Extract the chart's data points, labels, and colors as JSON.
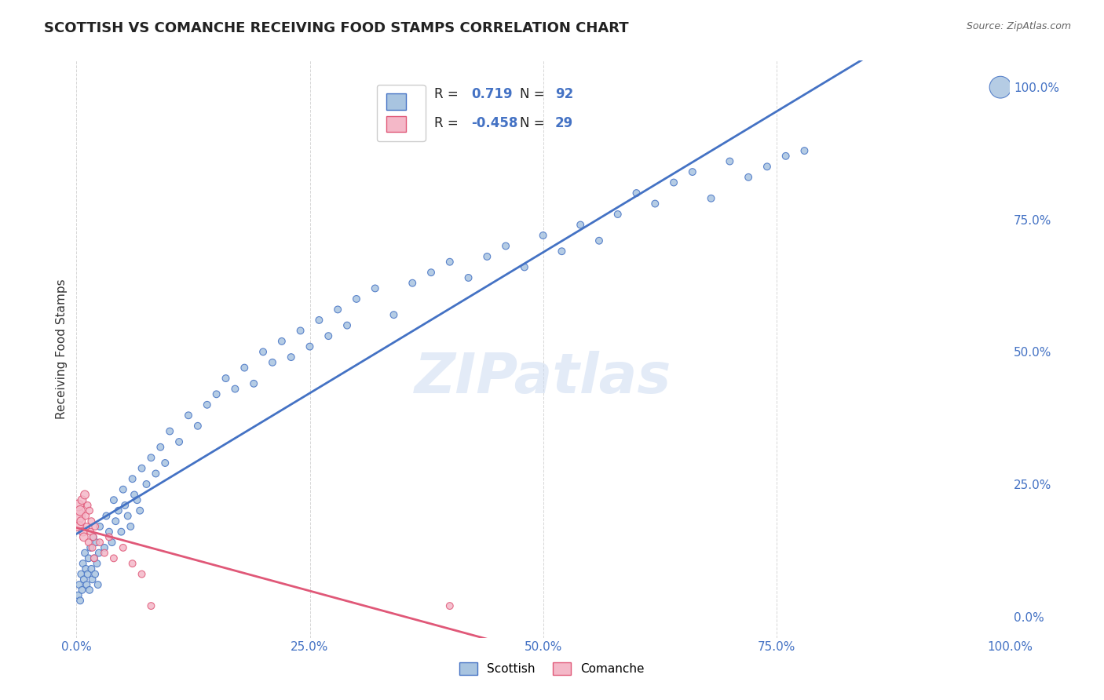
{
  "title": "SCOTTISH VS COMANCHE RECEIVING FOOD STAMPS CORRELATION CHART",
  "source": "Source: ZipAtlas.com",
  "ylabel": "Receiving Food Stamps",
  "watermark": "ZIPatlas",
  "legend": {
    "scottish_label": "Scottish",
    "comanche_label": "Comanche",
    "scottish_r": "0.719",
    "scottish_n": "92",
    "comanche_r": "-0.458",
    "comanche_n": "29"
  },
  "scottish_color": "#a8c4e0",
  "scottish_line_color": "#4472c4",
  "comanche_color": "#f4b8c8",
  "comanche_line_color": "#e05878",
  "background_color": "#ffffff",
  "grid_color": "#cccccc",
  "axis_label_color": "#4472c4",
  "title_color": "#222222",
  "scottish_points": [
    [
      0.002,
      0.04
    ],
    [
      0.003,
      0.06
    ],
    [
      0.004,
      0.03
    ],
    [
      0.005,
      0.08
    ],
    [
      0.006,
      0.05
    ],
    [
      0.007,
      0.1
    ],
    [
      0.008,
      0.07
    ],
    [
      0.009,
      0.12
    ],
    [
      0.01,
      0.09
    ],
    [
      0.011,
      0.06
    ],
    [
      0.012,
      0.08
    ],
    [
      0.013,
      0.11
    ],
    [
      0.014,
      0.05
    ],
    [
      0.015,
      0.13
    ],
    [
      0.016,
      0.09
    ],
    [
      0.017,
      0.07
    ],
    [
      0.018,
      0.15
    ],
    [
      0.019,
      0.11
    ],
    [
      0.02,
      0.08
    ],
    [
      0.021,
      0.14
    ],
    [
      0.022,
      0.1
    ],
    [
      0.023,
      0.06
    ],
    [
      0.024,
      0.12
    ],
    [
      0.025,
      0.17
    ],
    [
      0.03,
      0.13
    ],
    [
      0.032,
      0.19
    ],
    [
      0.035,
      0.16
    ],
    [
      0.038,
      0.14
    ],
    [
      0.04,
      0.22
    ],
    [
      0.042,
      0.18
    ],
    [
      0.045,
      0.2
    ],
    [
      0.048,
      0.16
    ],
    [
      0.05,
      0.24
    ],
    [
      0.052,
      0.21
    ],
    [
      0.055,
      0.19
    ],
    [
      0.058,
      0.17
    ],
    [
      0.06,
      0.26
    ],
    [
      0.062,
      0.23
    ],
    [
      0.065,
      0.22
    ],
    [
      0.068,
      0.2
    ],
    [
      0.07,
      0.28
    ],
    [
      0.075,
      0.25
    ],
    [
      0.08,
      0.3
    ],
    [
      0.085,
      0.27
    ],
    [
      0.09,
      0.32
    ],
    [
      0.095,
      0.29
    ],
    [
      0.1,
      0.35
    ],
    [
      0.11,
      0.33
    ],
    [
      0.12,
      0.38
    ],
    [
      0.13,
      0.36
    ],
    [
      0.14,
      0.4
    ],
    [
      0.15,
      0.42
    ],
    [
      0.16,
      0.45
    ],
    [
      0.17,
      0.43
    ],
    [
      0.18,
      0.47
    ],
    [
      0.19,
      0.44
    ],
    [
      0.2,
      0.5
    ],
    [
      0.21,
      0.48
    ],
    [
      0.22,
      0.52
    ],
    [
      0.23,
      0.49
    ],
    [
      0.24,
      0.54
    ],
    [
      0.25,
      0.51
    ],
    [
      0.26,
      0.56
    ],
    [
      0.27,
      0.53
    ],
    [
      0.28,
      0.58
    ],
    [
      0.29,
      0.55
    ],
    [
      0.3,
      0.6
    ],
    [
      0.32,
      0.62
    ],
    [
      0.34,
      0.57
    ],
    [
      0.36,
      0.63
    ],
    [
      0.38,
      0.65
    ],
    [
      0.4,
      0.67
    ],
    [
      0.42,
      0.64
    ],
    [
      0.44,
      0.68
    ],
    [
      0.46,
      0.7
    ],
    [
      0.48,
      0.66
    ],
    [
      0.5,
      0.72
    ],
    [
      0.52,
      0.69
    ],
    [
      0.54,
      0.74
    ],
    [
      0.56,
      0.71
    ],
    [
      0.58,
      0.76
    ],
    [
      0.6,
      0.8
    ],
    [
      0.62,
      0.78
    ],
    [
      0.64,
      0.82
    ],
    [
      0.66,
      0.84
    ],
    [
      0.68,
      0.79
    ],
    [
      0.7,
      0.86
    ],
    [
      0.72,
      0.83
    ],
    [
      0.74,
      0.85
    ],
    [
      0.76,
      0.87
    ],
    [
      0.78,
      0.88
    ],
    [
      0.99,
      1.0
    ]
  ],
  "comanche_points": [
    [
      0.001,
      0.19
    ],
    [
      0.002,
      0.21
    ],
    [
      0.003,
      0.17
    ],
    [
      0.004,
      0.2
    ],
    [
      0.005,
      0.18
    ],
    [
      0.006,
      0.22
    ],
    [
      0.007,
      0.16
    ],
    [
      0.008,
      0.15
    ],
    [
      0.009,
      0.23
    ],
    [
      0.01,
      0.19
    ],
    [
      0.011,
      0.17
    ],
    [
      0.012,
      0.21
    ],
    [
      0.013,
      0.14
    ],
    [
      0.014,
      0.2
    ],
    [
      0.015,
      0.16
    ],
    [
      0.016,
      0.18
    ],
    [
      0.017,
      0.13
    ],
    [
      0.018,
      0.15
    ],
    [
      0.019,
      0.11
    ],
    [
      0.02,
      0.17
    ],
    [
      0.025,
      0.14
    ],
    [
      0.03,
      0.12
    ],
    [
      0.035,
      0.15
    ],
    [
      0.04,
      0.11
    ],
    [
      0.05,
      0.13
    ],
    [
      0.06,
      0.1
    ],
    [
      0.07,
      0.08
    ],
    [
      0.08,
      0.02
    ],
    [
      0.4,
      0.02
    ]
  ],
  "scottish_sizes": [
    40,
    40,
    40,
    40,
    40,
    40,
    40,
    40,
    40,
    40,
    40,
    40,
    40,
    40,
    40,
    40,
    40,
    40,
    40,
    40,
    40,
    40,
    40,
    40,
    40,
    40,
    40,
    40,
    40,
    40,
    40,
    40,
    40,
    40,
    40,
    40,
    40,
    40,
    40,
    40,
    40,
    40,
    40,
    40,
    40,
    40,
    40,
    40,
    40,
    40,
    40,
    40,
    40,
    40,
    40,
    40,
    40,
    40,
    40,
    40,
    40,
    40,
    40,
    40,
    40,
    40,
    40,
    40,
    40,
    40,
    40,
    40,
    40,
    40,
    40,
    40,
    40,
    40,
    40,
    40,
    40,
    40,
    40,
    40,
    40,
    40,
    40,
    40,
    40,
    40,
    40,
    400
  ],
  "comanche_sizes": [
    200,
    100,
    80,
    80,
    60,
    60,
    60,
    60,
    60,
    40,
    40,
    40,
    40,
    40,
    40,
    40,
    40,
    40,
    40,
    40,
    40,
    40,
    40,
    40,
    40,
    40,
    40,
    40,
    40
  ]
}
